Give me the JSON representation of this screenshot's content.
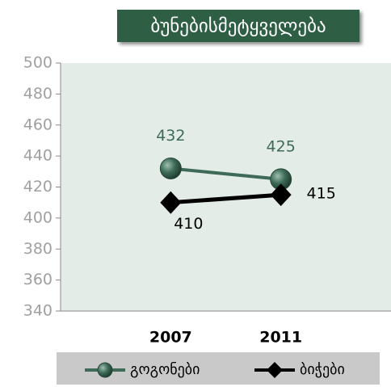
{
  "chart_data": {
    "type": "line",
    "title": "ბუნებისმეტყველება",
    "categories": [
      "2007",
      "2011"
    ],
    "series": [
      {
        "name": "გოგონები",
        "color": "#3e6b58",
        "values": [
          432,
          425
        ]
      },
      {
        "name": "ბიჭები",
        "color": "#000000",
        "values": [
          410,
          415
        ]
      }
    ],
    "ylim": [
      340,
      500
    ],
    "yticks": [
      340,
      360,
      380,
      400,
      420,
      440,
      460,
      480,
      500
    ],
    "legend": "bottom"
  }
}
